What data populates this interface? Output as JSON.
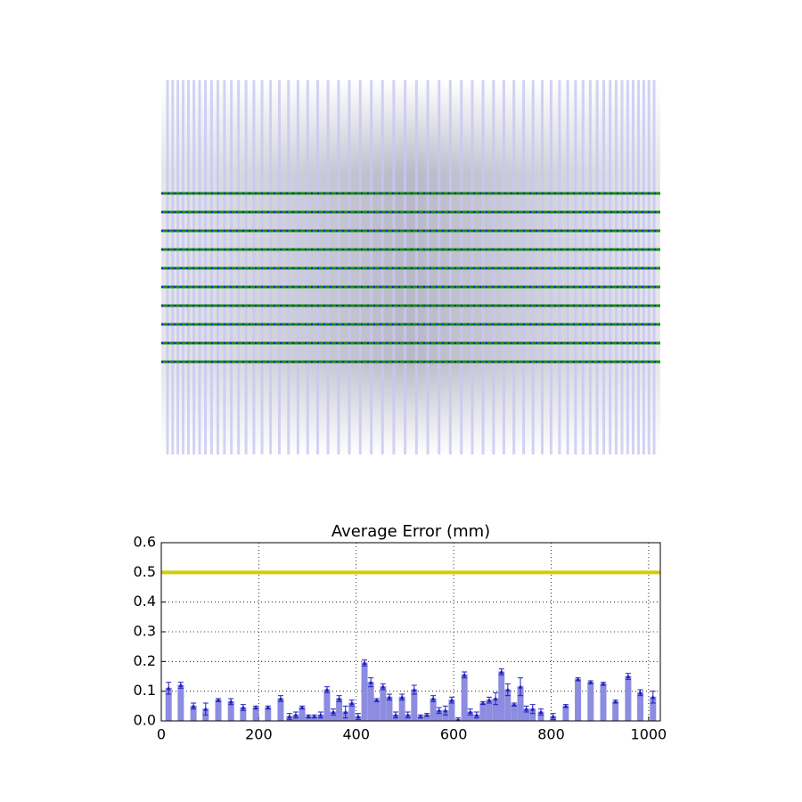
{
  "chart_data": {
    "type": "bar",
    "title": "Average Error (mm)",
    "x": [
      15,
      40,
      66,
      91,
      117,
      143,
      168,
      194,
      219,
      245,
      263,
      276,
      289,
      302,
      314,
      327,
      340,
      353,
      365,
      378,
      391,
      404,
      417,
      430,
      442,
      455,
      468,
      481,
      494,
      506,
      519,
      532,
      545,
      558,
      570,
      583,
      596,
      609,
      622,
      634,
      647,
      660,
      673,
      686,
      698,
      711,
      724,
      737,
      749,
      762,
      779,
      804,
      830,
      855,
      881,
      907,
      932,
      958,
      983,
      1009
    ],
    "values": [
      0.11,
      0.12,
      0.05,
      0.04,
      0.07,
      0.065,
      0.045,
      0.045,
      0.045,
      0.075,
      0.015,
      0.02,
      0.045,
      0.015,
      0.015,
      0.02,
      0.105,
      0.03,
      0.075,
      0.03,
      0.06,
      0.015,
      0.195,
      0.13,
      0.07,
      0.115,
      0.08,
      0.02,
      0.08,
      0.02,
      0.105,
      0.015,
      0.02,
      0.075,
      0.035,
      0.035,
      0.07,
      0.005,
      0.155,
      0.03,
      0.02,
      0.06,
      0.07,
      0.075,
      0.165,
      0.105,
      0.055,
      0.115,
      0.04,
      0.04,
      0.03,
      0.015,
      0.05,
      0.14,
      0.13,
      0.125,
      0.065,
      0.15,
      0.095,
      0.08
    ],
    "errors": [
      0.02,
      0.01,
      0.01,
      0.02,
      0.005,
      0.01,
      0.01,
      0.005,
      0.005,
      0.01,
      0.01,
      0.01,
      0.005,
      0.005,
      0.005,
      0.01,
      0.01,
      0.01,
      0.01,
      0.02,
      0.01,
      0.01,
      0.01,
      0.015,
      0.005,
      0.01,
      0.01,
      0.01,
      0.01,
      0.01,
      0.015,
      0.005,
      0.005,
      0.01,
      0.01,
      0.015,
      0.01,
      0.005,
      0.01,
      0.01,
      0.01,
      0.005,
      0.01,
      0.02,
      0.01,
      0.02,
      0.005,
      0.03,
      0.01,
      0.015,
      0.01,
      0.01,
      0.005,
      0.005,
      0.005,
      0.005,
      0.005,
      0.01,
      0.01,
      0.02
    ],
    "color": "#8c8ce0",
    "edge_color": "#2020c0",
    "xlim": [
      0,
      1024
    ],
    "xticks": [
      0,
      200,
      400,
      600,
      800,
      1000
    ],
    "ylim": [
      0,
      0.6
    ],
    "yticks": [
      0.0,
      0.1,
      0.2,
      0.3,
      0.4,
      0.5,
      0.6
    ],
    "yticklabels": [
      "0.0",
      "0.1",
      "0.2",
      "0.3",
      "0.4",
      "0.5",
      "0.6"
    ],
    "hline": {
      "value": 0.5,
      "color": "#d4cc00"
    },
    "grid": true
  }
}
